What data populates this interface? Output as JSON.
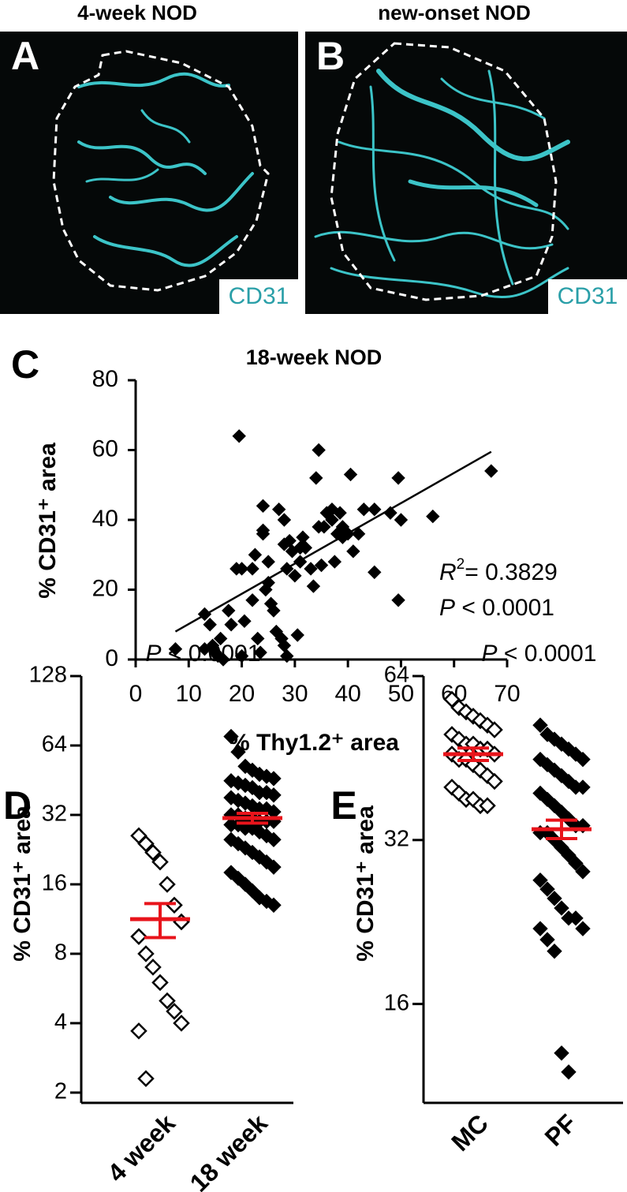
{
  "panels": [
    {
      "letter": "A",
      "title": "4-week NOD",
      "stain": "CD31"
    },
    {
      "letter": "B",
      "title": "new-onset NOD",
      "stain": "CD31"
    }
  ],
  "chart_data": [
    {
      "type": "scatter",
      "panel_label": "C",
      "title": "18-week NOD",
      "x_label": "% Thy1.2⁺ area",
      "y_label": "% CD31⁺ area",
      "xlim": [
        0,
        70
      ],
      "xticks": [
        0,
        10,
        20,
        30,
        40,
        50,
        60,
        70
      ],
      "ylim": [
        0,
        80
      ],
      "yticks": [
        0,
        20,
        40,
        60,
        80
      ],
      "color": "#000000",
      "x": [
        7.5,
        13,
        13,
        14,
        14.5,
        15,
        15.5,
        16,
        16.5,
        17.5,
        18,
        19,
        19.5,
        20,
        20,
        20.5,
        22,
        22,
        22.5,
        23,
        23.5,
        24,
        24,
        24,
        24.5,
        25,
        25,
        25.5,
        26,
        26.5,
        27,
        27.5,
        28,
        28,
        28,
        28.5,
        28.5,
        29,
        29.5,
        30,
        30.5,
        31,
        31,
        31.5,
        32,
        33,
        33.5,
        34,
        34.5,
        34.5,
        35,
        35.5,
        36,
        37,
        37,
        37.5,
        38,
        38.5,
        39,
        39,
        40,
        40.5,
        41,
        42,
        43,
        45,
        45,
        48,
        49.5,
        49.5,
        50,
        56,
        67
      ],
      "y": [
        3,
        13,
        3,
        10,
        4,
        2,
        1,
        6,
        0,
        14,
        10,
        26,
        64,
        1,
        26,
        11,
        26,
        17,
        30,
        6,
        2,
        36,
        44,
        37,
        20,
        22,
        28,
        16,
        14,
        8,
        43,
        6,
        4,
        40,
        33,
        26,
        1,
        34,
        31,
        24,
        7,
        32,
        28,
        35,
        32,
        26,
        21,
        52,
        60,
        38,
        27,
        38,
        42,
        43,
        40,
        28,
        36,
        42,
        38,
        35,
        36,
        53,
        31,
        36,
        43,
        43,
        25,
        42,
        52,
        17,
        40,
        41,
        54
      ],
      "trendline": {
        "x": [
          7.5,
          67
        ],
        "y": [
          8,
          59.5
        ]
      },
      "annotation_lines": [
        [
          "R",
          "2",
          "= 0.3829"
        ],
        [
          "P",
          " < 0.0001"
        ]
      ]
    },
    {
      "type": "dotplot",
      "panel_label": "D",
      "y_label": "% CD31⁺ area",
      "yscale": "log",
      "ylim": [
        2,
        128
      ],
      "yticks": [
        2,
        4,
        8,
        16,
        32,
        64,
        128
      ],
      "annotation": [
        "P",
        " < 0.0001"
      ],
      "error_color": "#e8141b",
      "groups": [
        {
          "name": "4 week",
          "marker": "open",
          "values": [
            26,
            24,
            22,
            20,
            16,
            13,
            11,
            9.5,
            8,
            7,
            6,
            5,
            4.5,
            4,
            3.7,
            2.3
          ],
          "mean": 11.3,
          "sem": 1.9
        },
        {
          "name": "18 week",
          "marker": "filled",
          "values": [
            70,
            60,
            52,
            50,
            48,
            47,
            46,
            45,
            44,
            43,
            42,
            40,
            40,
            39,
            38,
            37,
            36,
            35,
            34,
            34,
            33,
            32,
            32,
            31,
            31,
            30,
            30,
            30,
            29,
            29,
            28,
            28,
            27,
            26,
            25,
            25,
            24,
            23,
            22,
            21,
            20,
            19,
            18,
            17,
            16,
            15,
            14,
            13.5,
            13
          ],
          "mean": 31,
          "sem": 1.5
        }
      ]
    },
    {
      "type": "dotplot",
      "panel_label": "E",
      "y_label": "% CD31⁺ area",
      "yscale": "log",
      "ylim": [
        11,
        64
      ],
      "yticks": [
        16,
        32,
        64
      ],
      "annotation": [
        "P",
        " < 0.0001"
      ],
      "error_color": "#e8141b",
      "groups": [
        {
          "name": "MC",
          "marker": "open",
          "values": [
            58,
            56,
            55,
            54,
            53,
            52,
            51,
            50,
            49,
            48,
            48,
            47,
            47,
            46,
            46,
            45,
            45,
            44,
            43,
            42,
            41,
            40,
            39,
            38,
            38,
            37,
            37
          ],
          "mean": 46,
          "sem": 1.2
        },
        {
          "name": "PF",
          "marker": "filled",
          "values": [
            52,
            50,
            49,
            48,
            47,
            46,
            45,
            45,
            44,
            43,
            42,
            41,
            40,
            40,
            39,
            38,
            37,
            36,
            35,
            34,
            34,
            33,
            33,
            32,
            31,
            30,
            29,
            28,
            27,
            26,
            25,
            24,
            23,
            23,
            22,
            22,
            21,
            20,
            13,
            12
          ],
          "mean": 33.5,
          "sem": 1.3
        }
      ]
    }
  ]
}
